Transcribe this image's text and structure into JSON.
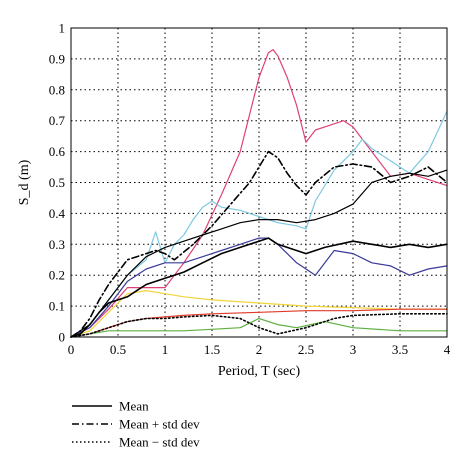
{
  "chart_data": {
    "type": "line",
    "xlabel": "Period, T (sec)",
    "ylabel": "S_d (m)",
    "xlim": [
      0,
      4
    ],
    "ylim": [
      0,
      1
    ],
    "x_ticks": [
      "0",
      "0.5",
      "1",
      "1.5",
      "2",
      "2.5",
      "3",
      "3.5",
      "4"
    ],
    "y_ticks": [
      "0",
      "0.1",
      "0.2",
      "0.3",
      "0.4",
      "0.5",
      "0.6",
      "0.7",
      "0.8",
      "0.9",
      "1"
    ],
    "grid": true,
    "legend_position": "below-left",
    "legend": [
      {
        "label": "Mean",
        "style": "solid"
      },
      {
        "label": "Mean + std dev",
        "style": "dashdot"
      },
      {
        "label": "Mean − std dev",
        "style": "dotted"
      }
    ],
    "series": [
      {
        "name": "Mean",
        "color": "#000000",
        "style": "solid",
        "x": [
          0,
          0.1,
          0.2,
          0.3,
          0.4,
          0.5,
          0.6,
          0.7,
          0.8,
          0.9,
          1.0,
          1.2,
          1.4,
          1.6,
          1.8,
          2.0,
          2.1,
          2.2,
          2.3,
          2.4,
          2.5,
          2.7,
          3.0,
          3.2,
          3.4,
          3.6,
          3.8,
          4.0
        ],
        "y": [
          0,
          0.01,
          0.04,
          0.08,
          0.11,
          0.12,
          0.13,
          0.15,
          0.17,
          0.18,
          0.19,
          0.21,
          0.24,
          0.27,
          0.29,
          0.31,
          0.32,
          0.3,
          0.29,
          0.28,
          0.27,
          0.29,
          0.31,
          0.3,
          0.29,
          0.3,
          0.29,
          0.3
        ]
      },
      {
        "name": "Mean + std dev",
        "color": "#000000",
        "style": "dashdot",
        "x": [
          0,
          0.1,
          0.2,
          0.3,
          0.4,
          0.5,
          0.6,
          0.7,
          0.8,
          0.9,
          1.0,
          1.1,
          1.3,
          1.5,
          1.7,
          1.9,
          2.0,
          2.1,
          2.2,
          2.3,
          2.4,
          2.5,
          2.6,
          2.8,
          3.0,
          3.2,
          3.4,
          3.6,
          3.8,
          4.0
        ],
        "y": [
          0,
          0.02,
          0.06,
          0.12,
          0.17,
          0.21,
          0.25,
          0.26,
          0.27,
          0.28,
          0.27,
          0.25,
          0.3,
          0.36,
          0.43,
          0.5,
          0.55,
          0.6,
          0.58,
          0.53,
          0.49,
          0.46,
          0.5,
          0.55,
          0.56,
          0.55,
          0.5,
          0.52,
          0.55,
          0.5
        ]
      },
      {
        "name": "Mean − std dev",
        "color": "#000000",
        "style": "dotted",
        "x": [
          0,
          0.2,
          0.4,
          0.6,
          0.8,
          1.0,
          1.2,
          1.5,
          1.8,
          2.0,
          2.2,
          2.5,
          2.8,
          3.0,
          3.5,
          4.0
        ],
        "y": [
          0,
          0.01,
          0.03,
          0.05,
          0.06,
          0.06,
          0.065,
          0.07,
          0.06,
          0.03,
          0.01,
          0.03,
          0.06,
          0.07,
          0.075,
          0.075
        ]
      },
      {
        "name": "",
        "color": "#e0407a",
        "style": "solid",
        "x": [
          0,
          0.2,
          0.4,
          0.6,
          0.8,
          1.0,
          1.2,
          1.4,
          1.6,
          1.8,
          1.9,
          2.0,
          2.1,
          2.15,
          2.2,
          2.3,
          2.4,
          2.5,
          2.6,
          2.8,
          2.9,
          3.0,
          3.2,
          3.4,
          3.6,
          3.8,
          4.0
        ],
        "y": [
          0,
          0.03,
          0.09,
          0.16,
          0.16,
          0.16,
          0.24,
          0.33,
          0.46,
          0.6,
          0.72,
          0.84,
          0.92,
          0.93,
          0.91,
          0.84,
          0.75,
          0.63,
          0.67,
          0.69,
          0.7,
          0.68,
          0.6,
          0.52,
          0.53,
          0.51,
          0.49
        ]
      },
      {
        "name": "",
        "color": "#7ec8e3",
        "style": "solid",
        "x": [
          0,
          0.2,
          0.4,
          0.6,
          0.8,
          0.9,
          1.0,
          1.1,
          1.2,
          1.3,
          1.4,
          1.5,
          1.6,
          1.8,
          2.0,
          2.2,
          2.4,
          2.5,
          2.6,
          2.8,
          3.0,
          3.1,
          3.2,
          3.4,
          3.6,
          3.8,
          4.0
        ],
        "y": [
          0,
          0.04,
          0.12,
          0.2,
          0.25,
          0.34,
          0.24,
          0.3,
          0.33,
          0.38,
          0.42,
          0.44,
          0.42,
          0.41,
          0.39,
          0.37,
          0.36,
          0.35,
          0.44,
          0.54,
          0.6,
          0.64,
          0.61,
          0.57,
          0.53,
          0.6,
          0.73
        ]
      },
      {
        "name": "",
        "color": "#000000",
        "style": "solid",
        "x": [
          0,
          0.2,
          0.4,
          0.6,
          0.8,
          1.0,
          1.2,
          1.4,
          1.6,
          1.8,
          2.0,
          2.2,
          2.4,
          2.6,
          2.8,
          3.0,
          3.2,
          3.4,
          3.6,
          3.8,
          4.0
        ],
        "y": [
          0,
          0.04,
          0.12,
          0.2,
          0.26,
          0.29,
          0.31,
          0.33,
          0.35,
          0.37,
          0.38,
          0.38,
          0.37,
          0.38,
          0.4,
          0.43,
          0.5,
          0.52,
          0.53,
          0.52,
          0.54
        ]
      },
      {
        "name": "",
        "color": "#3a3a9a",
        "style": "solid",
        "x": [
          0,
          0.2,
          0.4,
          0.6,
          0.8,
          1.0,
          1.2,
          1.4,
          1.6,
          1.8,
          2.0,
          2.1,
          2.2,
          2.4,
          2.6,
          2.8,
          3.0,
          3.2,
          3.4,
          3.6,
          3.8,
          4.0
        ],
        "y": [
          0,
          0.03,
          0.1,
          0.18,
          0.22,
          0.24,
          0.24,
          0.26,
          0.28,
          0.3,
          0.32,
          0.32,
          0.3,
          0.24,
          0.2,
          0.28,
          0.27,
          0.24,
          0.23,
          0.2,
          0.22,
          0.23
        ]
      },
      {
        "name": "",
        "color": "#f2d43a",
        "style": "solid",
        "x": [
          0,
          0.2,
          0.4,
          0.6,
          0.8,
          1.0,
          1.2,
          1.5,
          2.0,
          2.5,
          3.0,
          3.5,
          4.0
        ],
        "y": [
          0,
          0.02,
          0.08,
          0.14,
          0.15,
          0.14,
          0.13,
          0.12,
          0.11,
          0.1,
          0.095,
          0.09,
          0.09
        ]
      },
      {
        "name": "",
        "color": "#e03a2a",
        "style": "solid",
        "x": [
          0,
          0.2,
          0.4,
          0.6,
          0.8,
          1.0,
          1.2,
          1.5,
          2.0,
          2.5,
          3.0,
          3.5,
          4.0
        ],
        "y": [
          0,
          0.01,
          0.03,
          0.05,
          0.06,
          0.065,
          0.07,
          0.075,
          0.08,
          0.085,
          0.085,
          0.09,
          0.09
        ]
      },
      {
        "name": "",
        "color": "#5fb043",
        "style": "solid",
        "x": [
          0,
          0.2,
          0.4,
          0.6,
          0.8,
          1.0,
          1.2,
          1.5,
          1.8,
          2.0,
          2.2,
          2.4,
          2.7,
          3.0,
          3.5,
          4.0
        ],
        "y": [
          0,
          0.01,
          0.02,
          0.02,
          0.02,
          0.02,
          0.02,
          0.025,
          0.03,
          0.06,
          0.04,
          0.03,
          0.05,
          0.03,
          0.02,
          0.02
        ]
      }
    ]
  }
}
